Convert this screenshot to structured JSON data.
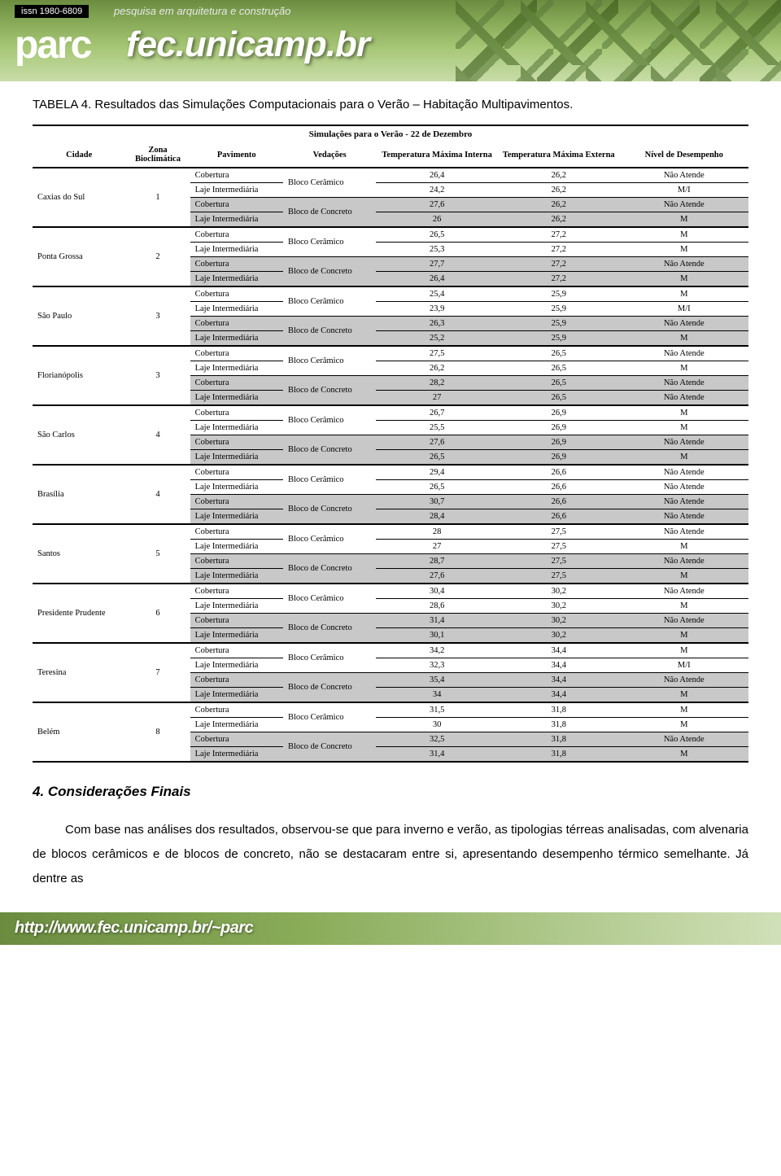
{
  "header": {
    "issn": "issn 1980-6809",
    "subtitle": "pesquisa em arquitetura e construção",
    "parc": "parc",
    "fec": "fec.unicamp.br"
  },
  "table": {
    "caption": "TABELA 4. Resultados das Simulações Computacionais para o Verão – Habitação Multipavimentos.",
    "subtitle": "Simulações para o Verão - 22 de Dezembro",
    "headers": {
      "cidade": "Cidade",
      "zona": "Zona Bioclimática",
      "pavimento": "Pavimento",
      "vedacoes": "Vedações",
      "tmi": "Temperatura Máxima Interna",
      "tme": "Temperatura Máxima Externa",
      "nivel": "Nível de Desempenho"
    },
    "labels": {
      "cobertura": "Cobertura",
      "laje": "Laje Intermediária",
      "ceramico": "Bloco Cerâmico",
      "concreto": "Bloco de Concreto"
    },
    "cities": [
      {
        "name": "Caxias do Sul",
        "zone": "1",
        "ext": "26,2",
        "rows": [
          {
            "int": "26,4",
            "lvl": "Não Atende"
          },
          {
            "int": "24,2",
            "lvl": "M/I"
          },
          {
            "int": "27,6",
            "lvl": "Não Atende"
          },
          {
            "int": "26",
            "lvl": "M"
          }
        ]
      },
      {
        "name": "Ponta Grossa",
        "zone": "2",
        "ext": "27,2",
        "rows": [
          {
            "int": "26,5",
            "lvl": "M"
          },
          {
            "int": "25,3",
            "lvl": "M"
          },
          {
            "int": "27,7",
            "lvl": "Não Atende"
          },
          {
            "int": "26,4",
            "lvl": "M"
          }
        ]
      },
      {
        "name": "São Paulo",
        "zone": "3",
        "ext": "25,9",
        "rows": [
          {
            "int": "25,4",
            "lvl": "M"
          },
          {
            "int": "23,9",
            "lvl": "M/I"
          },
          {
            "int": "26,3",
            "lvl": "Não Atende"
          },
          {
            "int": "25,2",
            "lvl": "M"
          }
        ]
      },
      {
        "name": "Florianópolis",
        "zone": "3",
        "ext": "26,5",
        "rows": [
          {
            "int": "27,5",
            "lvl": "Não Atende"
          },
          {
            "int": "26,2",
            "lvl": "M"
          },
          {
            "int": "28,2",
            "lvl": "Não Atende"
          },
          {
            "int": "27",
            "lvl": "Não Atende"
          }
        ]
      },
      {
        "name": "São Carlos",
        "zone": "4",
        "ext": "26,9",
        "rows": [
          {
            "int": "26,7",
            "lvl": "M"
          },
          {
            "int": "25,5",
            "lvl": "M"
          },
          {
            "int": "27,6",
            "lvl": "Não Atende"
          },
          {
            "int": "26,5",
            "lvl": "M"
          }
        ]
      },
      {
        "name": "Brasília",
        "zone": "4",
        "ext": "26,6",
        "rows": [
          {
            "int": "29,4",
            "lvl": "Não Atende"
          },
          {
            "int": "26,5",
            "lvl": "Não Atende"
          },
          {
            "int": "30,7",
            "lvl": "Não Atende"
          },
          {
            "int": "28,4",
            "lvl": "Não Atende"
          }
        ]
      },
      {
        "name": "Santos",
        "zone": "5",
        "ext": "27,5",
        "rows": [
          {
            "int": "28",
            "lvl": "Não Atende"
          },
          {
            "int": "27",
            "lvl": "M"
          },
          {
            "int": "28,7",
            "lvl": "Não Atende"
          },
          {
            "int": "27,6",
            "lvl": "M"
          }
        ]
      },
      {
        "name": "Presidente Prudente",
        "zone": "6",
        "ext": "30,2",
        "rows": [
          {
            "int": "30,4",
            "lvl": "Não Atende"
          },
          {
            "int": "28,6",
            "lvl": "M"
          },
          {
            "int": "31,4",
            "lvl": "Não Atende"
          },
          {
            "int": "30,1",
            "lvl": "M"
          }
        ]
      },
      {
        "name": "Teresina",
        "zone": "7",
        "ext": "34,4",
        "rows": [
          {
            "int": "34,2",
            "lvl": "M"
          },
          {
            "int": "32,3",
            "lvl": "M/I"
          },
          {
            "int": "35,4",
            "lvl": "Não Atende"
          },
          {
            "int": "34",
            "lvl": "M"
          }
        ]
      },
      {
        "name": "Belém",
        "zone": "8",
        "ext": "31,8",
        "rows": [
          {
            "int": "31,5",
            "lvl": "M"
          },
          {
            "int": "30",
            "lvl": "M"
          },
          {
            "int": "32,5",
            "lvl": "Não Atende"
          },
          {
            "int": "31,4",
            "lvl": "M"
          }
        ]
      }
    ]
  },
  "section": {
    "heading": "4. Considerações Finais",
    "paragraph": "Com base nas análises dos resultados, observou-se que para inverno e verão, as tipologias térreas analisadas, com alvenaria de blocos cerâmicos e de blocos de concreto, não se destacaram entre si, apresentando desempenho térmico semelhante. Já dentre as"
  },
  "footer": {
    "url": "http://www.fec.unicamp.br/~parc"
  },
  "style": {
    "header_gradient_from": "#6b8c3f",
    "header_gradient_to": "#c8dca8",
    "gray_row_bg": "#c8c8c8",
    "border_color": "#000000",
    "body_font": "Arial",
    "table_font": "Times New Roman",
    "table_font_size_pt": 8,
    "caption_font_size_pt": 11,
    "section_heading_font_size_pt": 13,
    "body_text_font_size_pt": 11
  }
}
